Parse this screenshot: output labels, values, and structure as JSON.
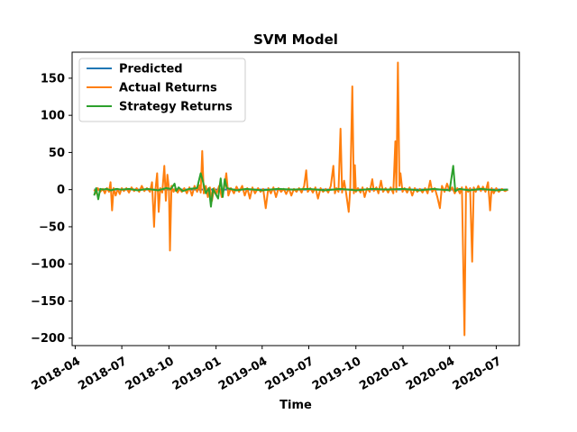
{
  "chart_data": {
    "type": "line",
    "title": "SVM Model",
    "xlabel": "Time",
    "ylabel": "",
    "x_range": [
      "2018-03-26",
      "2020-08-15"
    ],
    "ylim": [
      -210,
      185
    ],
    "y_ticks": [
      -200,
      -150,
      -100,
      -50,
      0,
      50,
      100,
      150
    ],
    "x_ticks": [
      "2018-04",
      "2018-07",
      "2018-10",
      "2019-01",
      "2019-04",
      "2019-07",
      "2019-10",
      "2020-01",
      "2020-04",
      "2020-07"
    ],
    "legend": {
      "placement": "top-left"
    },
    "grid": false,
    "series": [
      {
        "name": "Predicted",
        "color": "#1f77b4",
        "points": [
          [
            "2018-05-08",
            0
          ],
          [
            "2020-07-24",
            0
          ]
        ]
      },
      {
        "name": "Actual Returns",
        "color": "#ff7f0e",
        "points": [
          [
            "2018-05-08",
            0
          ],
          [
            "2018-05-12",
            -5
          ],
          [
            "2018-05-15",
            2
          ],
          [
            "2018-05-20",
            -3
          ],
          [
            "2018-05-25",
            1
          ],
          [
            "2018-05-29",
            -5
          ],
          [
            "2018-06-02",
            2
          ],
          [
            "2018-06-06",
            -3
          ],
          [
            "2018-06-09",
            10
          ],
          [
            "2018-06-12",
            -28
          ],
          [
            "2018-06-15",
            2
          ],
          [
            "2018-06-19",
            -8
          ],
          [
            "2018-06-23",
            1
          ],
          [
            "2018-06-27",
            -6
          ],
          [
            "2018-07-01",
            2
          ],
          [
            "2018-07-05",
            -2
          ],
          [
            "2018-07-10",
            2
          ],
          [
            "2018-07-15",
            -4
          ],
          [
            "2018-07-20",
            3
          ],
          [
            "2018-07-25",
            -2
          ],
          [
            "2018-07-30",
            2
          ],
          [
            "2018-08-04",
            -3
          ],
          [
            "2018-08-09",
            5
          ],
          [
            "2018-08-14",
            -2
          ],
          [
            "2018-08-19",
            2
          ],
          [
            "2018-08-25",
            -3
          ],
          [
            "2018-08-29",
            10
          ],
          [
            "2018-09-02",
            -50
          ],
          [
            "2018-09-05",
            2
          ],
          [
            "2018-09-08",
            22
          ],
          [
            "2018-09-11",
            -30
          ],
          [
            "2018-09-14",
            2
          ],
          [
            "2018-09-18",
            -4
          ],
          [
            "2018-09-22",
            32
          ],
          [
            "2018-09-25",
            -15
          ],
          [
            "2018-09-28",
            20
          ],
          [
            "2018-10-01",
            2
          ],
          [
            "2018-10-03",
            -82
          ],
          [
            "2018-10-06",
            5
          ],
          [
            "2018-10-10",
            -3
          ],
          [
            "2018-10-14",
            2
          ],
          [
            "2018-10-18",
            -4
          ],
          [
            "2018-10-22",
            1
          ],
          [
            "2018-10-26",
            -3
          ],
          [
            "2018-10-31",
            2
          ],
          [
            "2018-11-05",
            -5
          ],
          [
            "2018-11-10",
            3
          ],
          [
            "2018-11-15",
            -8
          ],
          [
            "2018-11-20",
            5
          ],
          [
            "2018-11-25",
            -3
          ],
          [
            "2018-11-29",
            6
          ],
          [
            "2018-12-02",
            -4
          ],
          [
            "2018-12-05",
            52
          ],
          [
            "2018-12-08",
            -5
          ],
          [
            "2018-12-12",
            5
          ],
          [
            "2018-12-16",
            -10
          ],
          [
            "2018-12-20",
            3
          ],
          [
            "2018-12-24",
            -15
          ],
          [
            "2018-12-28",
            2
          ],
          [
            "2019-01-02",
            -5
          ],
          [
            "2019-01-07",
            5
          ],
          [
            "2019-01-12",
            -10
          ],
          [
            "2019-01-17",
            3
          ],
          [
            "2019-01-21",
            22
          ],
          [
            "2019-01-25",
            -8
          ],
          [
            "2019-01-30",
            2
          ],
          [
            "2019-02-05",
            -5
          ],
          [
            "2019-02-10",
            4
          ],
          [
            "2019-02-15",
            -3
          ],
          [
            "2019-02-21",
            5
          ],
          [
            "2019-02-26",
            -8
          ],
          [
            "2019-03-03",
            2
          ],
          [
            "2019-03-08",
            -12
          ],
          [
            "2019-03-13",
            3
          ],
          [
            "2019-03-18",
            -5
          ],
          [
            "2019-03-24",
            2
          ],
          [
            "2019-03-29",
            -3
          ],
          [
            "2019-04-03",
            1
          ],
          [
            "2019-04-08",
            -25
          ],
          [
            "2019-04-13",
            2
          ],
          [
            "2019-04-18",
            -5
          ],
          [
            "2019-04-23",
            3
          ],
          [
            "2019-04-28",
            -10
          ],
          [
            "2019-05-03",
            2
          ],
          [
            "2019-05-08",
            -3
          ],
          [
            "2019-05-13",
            1
          ],
          [
            "2019-05-18",
            -6
          ],
          [
            "2019-05-23",
            2
          ],
          [
            "2019-05-28",
            -8
          ],
          [
            "2019-06-02",
            1
          ],
          [
            "2019-06-07",
            -3
          ],
          [
            "2019-06-12",
            2
          ],
          [
            "2019-06-17",
            -4
          ],
          [
            "2019-06-22",
            5
          ],
          [
            "2019-06-26",
            26
          ],
          [
            "2019-06-29",
            -3
          ],
          [
            "2019-07-04",
            2
          ],
          [
            "2019-07-09",
            -4
          ],
          [
            "2019-07-14",
            3
          ],
          [
            "2019-07-19",
            -12
          ],
          [
            "2019-07-24",
            2
          ],
          [
            "2019-07-29",
            -3
          ],
          [
            "2019-08-03",
            1
          ],
          [
            "2019-08-08",
            -4
          ],
          [
            "2019-08-13",
            5
          ],
          [
            "2019-08-18",
            32
          ],
          [
            "2019-08-21",
            -5
          ],
          [
            "2019-08-24",
            2
          ],
          [
            "2019-08-28",
            -3
          ],
          [
            "2019-09-01",
            82
          ],
          [
            "2019-09-04",
            -4
          ],
          [
            "2019-09-08",
            12
          ],
          [
            "2019-09-12",
            -5
          ],
          [
            "2019-09-17",
            -30
          ],
          [
            "2019-09-20",
            2
          ],
          [
            "2019-09-24",
            139
          ],
          [
            "2019-09-27",
            -5
          ],
          [
            "2019-09-29",
            33
          ],
          [
            "2019-10-01",
            -3
          ],
          [
            "2019-10-05",
            2
          ],
          [
            "2019-10-10",
            -4
          ],
          [
            "2019-10-14",
            3
          ],
          [
            "2019-10-18",
            -10
          ],
          [
            "2019-10-23",
            2
          ],
          [
            "2019-10-28",
            -3
          ],
          [
            "2019-11-02",
            14
          ],
          [
            "2019-11-05",
            -2
          ],
          [
            "2019-11-10",
            3
          ],
          [
            "2019-11-14",
            -5
          ],
          [
            "2019-11-19",
            12
          ],
          [
            "2019-11-23",
            -3
          ],
          [
            "2019-11-28",
            2
          ],
          [
            "2019-12-03",
            -4
          ],
          [
            "2019-12-08",
            3
          ],
          [
            "2019-12-13",
            -5
          ],
          [
            "2019-12-17",
            65
          ],
          [
            "2019-12-19",
            -3
          ],
          [
            "2019-12-22",
            171
          ],
          [
            "2019-12-25",
            5
          ],
          [
            "2019-12-27",
            22
          ],
          [
            "2019-12-31",
            -3
          ],
          [
            "2020-01-04",
            2
          ],
          [
            "2020-01-09",
            -4
          ],
          [
            "2020-01-14",
            3
          ],
          [
            "2020-01-19",
            -8
          ],
          [
            "2020-01-24",
            2
          ],
          [
            "2020-01-29",
            -3
          ],
          [
            "2020-02-03",
            1
          ],
          [
            "2020-02-08",
            -4
          ],
          [
            "2020-02-13",
            2
          ],
          [
            "2020-02-18",
            -5
          ],
          [
            "2020-02-23",
            12
          ],
          [
            "2020-02-27",
            -3
          ],
          [
            "2020-03-03",
            2
          ],
          [
            "2020-03-08",
            -10
          ],
          [
            "2020-03-13",
            -25
          ],
          [
            "2020-03-17",
            5
          ],
          [
            "2020-03-22",
            -3
          ],
          [
            "2020-03-27",
            8
          ],
          [
            "2020-04-01",
            -2
          ],
          [
            "2020-04-06",
            3
          ],
          [
            "2020-04-11",
            -5
          ],
          [
            "2020-04-16",
            2
          ],
          [
            "2020-04-21",
            -5
          ],
          [
            "2020-04-25",
            3
          ],
          [
            "2020-04-30",
            -196
          ],
          [
            "2020-05-03",
            4
          ],
          [
            "2020-05-07",
            -3
          ],
          [
            "2020-05-11",
            2
          ],
          [
            "2020-05-15",
            -97
          ],
          [
            "2020-05-18",
            3
          ],
          [
            "2020-05-22",
            -3
          ],
          [
            "2020-05-27",
            5
          ],
          [
            "2020-06-01",
            -2
          ],
          [
            "2020-06-05",
            4
          ],
          [
            "2020-06-10",
            -3
          ],
          [
            "2020-06-15",
            10
          ],
          [
            "2020-06-19",
            -28
          ],
          [
            "2020-06-22",
            2
          ],
          [
            "2020-06-26",
            -5
          ],
          [
            "2020-07-01",
            2
          ],
          [
            "2020-07-06",
            -3
          ],
          [
            "2020-07-12",
            1
          ],
          [
            "2020-07-18",
            -2
          ],
          [
            "2020-07-24",
            0
          ]
        ]
      },
      {
        "name": "Strategy Returns",
        "color": "#2ca02c",
        "points": [
          [
            "2018-05-08",
            -8
          ],
          [
            "2018-05-12",
            2
          ],
          [
            "2018-05-16",
            -13
          ],
          [
            "2018-05-20",
            1
          ],
          [
            "2018-05-25",
            0
          ],
          [
            "2018-06-01",
            1
          ],
          [
            "2018-06-10",
            -1
          ],
          [
            "2018-06-20",
            1
          ],
          [
            "2018-07-01",
            0
          ],
          [
            "2018-07-15",
            1
          ],
          [
            "2018-08-01",
            -1
          ],
          [
            "2018-08-20",
            1
          ],
          [
            "2018-09-10",
            -1
          ],
          [
            "2018-09-25",
            2
          ],
          [
            "2018-10-05",
            1
          ],
          [
            "2018-10-12",
            8
          ],
          [
            "2018-10-15",
            -2
          ],
          [
            "2018-10-20",
            3
          ],
          [
            "2018-10-28",
            -2
          ],
          [
            "2018-11-10",
            1
          ],
          [
            "2018-11-25",
            2
          ],
          [
            "2018-12-02",
            22
          ],
          [
            "2018-12-06",
            12
          ],
          [
            "2018-12-12",
            -5
          ],
          [
            "2018-12-18",
            2
          ],
          [
            "2018-12-22",
            -23
          ],
          [
            "2018-12-26",
            1
          ],
          [
            "2019-01-05",
            -12
          ],
          [
            "2019-01-10",
            15
          ],
          [
            "2019-01-14",
            -10
          ],
          [
            "2019-01-18",
            14
          ],
          [
            "2019-01-22",
            2
          ],
          [
            "2019-02-10",
            -1
          ],
          [
            "2019-03-01",
            1
          ],
          [
            "2019-04-01",
            -1
          ],
          [
            "2019-05-01",
            1
          ],
          [
            "2019-06-01",
            0
          ],
          [
            "2019-07-01",
            1
          ],
          [
            "2019-08-01",
            -1
          ],
          [
            "2019-09-01",
            1
          ],
          [
            "2019-10-01",
            -1
          ],
          [
            "2019-11-01",
            1
          ],
          [
            "2019-12-01",
            0
          ],
          [
            "2020-01-01",
            1
          ],
          [
            "2020-02-01",
            -1
          ],
          [
            "2020-03-01",
            1
          ],
          [
            "2020-04-01",
            -1
          ],
          [
            "2020-04-08",
            32
          ],
          [
            "2020-04-12",
            -2
          ],
          [
            "2020-04-20",
            1
          ],
          [
            "2020-05-10",
            -1
          ],
          [
            "2020-06-01",
            1
          ],
          [
            "2020-07-01",
            -1
          ],
          [
            "2020-07-24",
            0
          ]
        ]
      }
    ]
  }
}
